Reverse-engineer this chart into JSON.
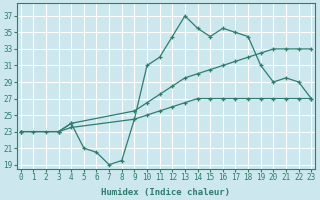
{
  "xlabel": "Humidex (Indice chaleur)",
  "bg_color": "#cce8ee",
  "grid_color": "#ffffff",
  "line_color": "#2e7d6e",
  "x_ticks": [
    0,
    1,
    2,
    3,
    4,
    5,
    6,
    7,
    8,
    9,
    10,
    11,
    12,
    13,
    14,
    15,
    16,
    17,
    18,
    19,
    20,
    21,
    22,
    23
  ],
  "y_ticks": [
    19,
    21,
    23,
    25,
    27,
    29,
    31,
    33,
    35,
    37
  ],
  "xlim": [
    -0.3,
    23.3
  ],
  "ylim": [
    18.5,
    38.5
  ],
  "line1_x": [
    0,
    1,
    2,
    3,
    4,
    5,
    6,
    7,
    8,
    9,
    10,
    11,
    12,
    13,
    14,
    15,
    16,
    17,
    18,
    19,
    20,
    21,
    22,
    23
  ],
  "line1_y": [
    23,
    23,
    23,
    23,
    24,
    21,
    20.5,
    19,
    19.5,
    24.5,
    31,
    32,
    34.5,
    37,
    35.5,
    34.5,
    35.5,
    35,
    34.5,
    31,
    29,
    29.5,
    29,
    27
  ],
  "line2_x": [
    0,
    3,
    4,
    9,
    10,
    11,
    12,
    13,
    14,
    15,
    16,
    17,
    18,
    19,
    20,
    21,
    22,
    23
  ],
  "line2_y": [
    23,
    23,
    24,
    25.5,
    26.5,
    27.5,
    28.5,
    29.5,
    30,
    30.5,
    31,
    31.5,
    32,
    32.5,
    33,
    33,
    33,
    33
  ],
  "line3_x": [
    0,
    3,
    4,
    9,
    10,
    11,
    12,
    13,
    14,
    15,
    16,
    17,
    18,
    19,
    20,
    21,
    22,
    23
  ],
  "line3_y": [
    23,
    23,
    23.5,
    24.5,
    25,
    25.5,
    26,
    26.5,
    27,
    27,
    27,
    27,
    27,
    27,
    27,
    27,
    27,
    27
  ]
}
